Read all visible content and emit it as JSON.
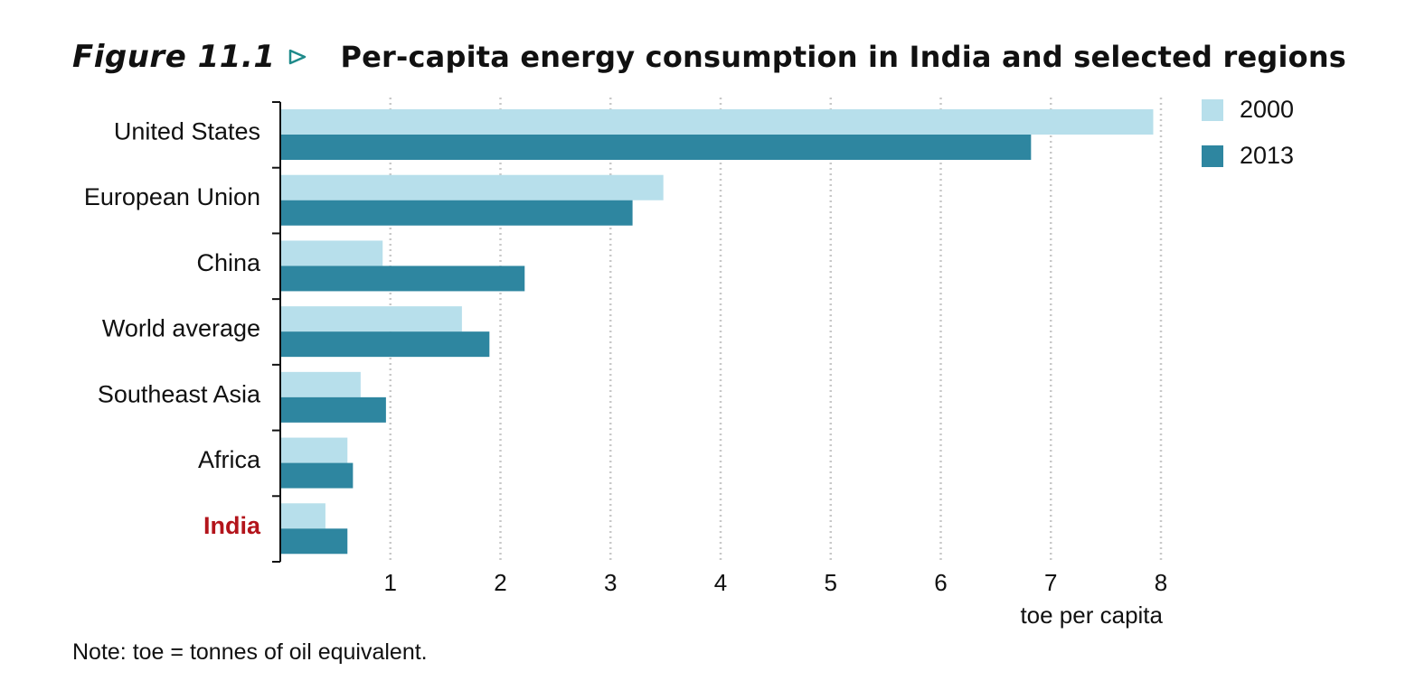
{
  "figure": {
    "number": "Figure 11.1",
    "arrow_icon": "triangle-outline-right-icon",
    "title": "Per-capita energy consumption in India and selected regions",
    "note": "Note: toe = tonnes of oil equivalent."
  },
  "colors": {
    "series_2000": "#b7dfeb",
    "series_2013": "#2e86a0",
    "highlight_label": "#b3141b",
    "gridline": "#c8c8c8",
    "axis": "#111111",
    "arrow": "#1f8a8a"
  },
  "chart_data": {
    "type": "bar",
    "orientation": "horizontal",
    "title": "Per-capita energy consumption in India and selected regions",
    "categories": [
      "United States",
      "European Union",
      "China",
      "World average",
      "Southeast Asia",
      "Africa",
      "India"
    ],
    "highlight_category": "India",
    "series": [
      {
        "name": "2000",
        "values": [
          7.93,
          3.48,
          0.93,
          1.65,
          0.73,
          0.61,
          0.41
        ]
      },
      {
        "name": "2013",
        "values": [
          6.82,
          3.2,
          2.22,
          1.9,
          0.96,
          0.66,
          0.61
        ]
      }
    ],
    "xlabel": "toe per capita",
    "ylabel": "",
    "xlim": [
      0,
      8
    ],
    "xticks": [
      "1",
      "2",
      "3",
      "4",
      "5",
      "6",
      "7",
      "8"
    ],
    "grid": "vertical-dotted",
    "legend_position": "top-right"
  }
}
